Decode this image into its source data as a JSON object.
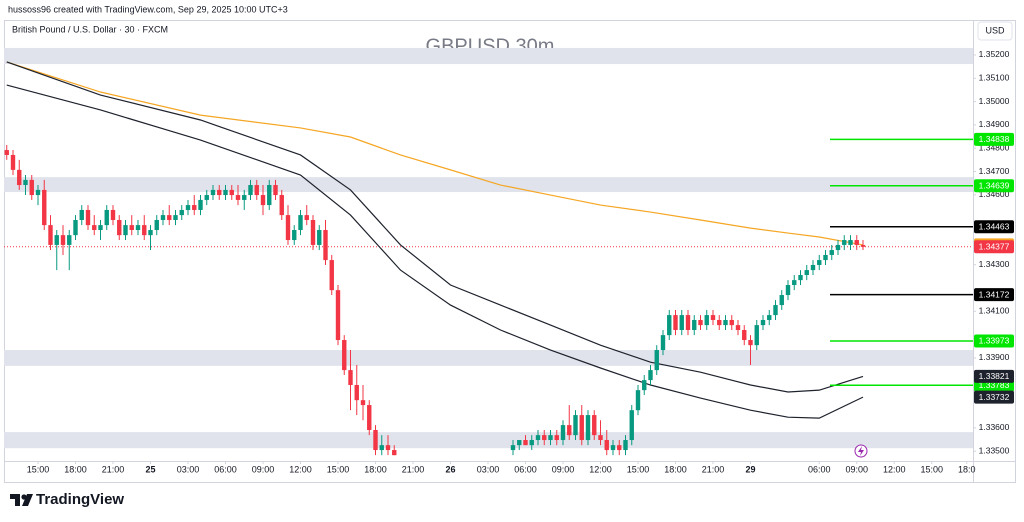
{
  "header": "hussoss96 created with TradingView.com, Sep 29, 2025 10:00 UTC+3",
  "brand": "TradingView",
  "chart_data": {
    "type": "candlestick",
    "subtitle": "British Pound / U.S. Dollar · 30 · FXCM",
    "title": "GBPUSD 30m",
    "currency": "USD",
    "ylim": [
      1.33458,
      1.3535
    ],
    "xlim": [
      -0.44,
      154.6
    ],
    "yticks": [
      {
        "value": 1.352,
        "label": "1.35200"
      },
      {
        "value": 1.351,
        "label": "1.35100"
      },
      {
        "value": 1.35,
        "label": "1.35000"
      },
      {
        "value": 1.349,
        "label": "1.34900"
      },
      {
        "value": 1.348,
        "label": "1.34800"
      },
      {
        "value": 1.347,
        "label": "1.34700"
      },
      {
        "value": 1.346,
        "label": "1.34600"
      },
      {
        "value": 1.343,
        "label": "1.34300"
      },
      {
        "value": 1.341,
        "label": "1.34100"
      },
      {
        "value": 1.339,
        "label": "1.33900"
      },
      {
        "value": 1.336,
        "label": "1.33600"
      },
      {
        "value": 1.335,
        "label": "1.33500"
      }
    ],
    "xticks": [
      {
        "value": 5,
        "label": "15:00"
      },
      {
        "value": 11,
        "label": "18:00"
      },
      {
        "value": 17,
        "label": "21:00"
      },
      {
        "value": 23,
        "label": "25"
      },
      {
        "value": 29,
        "label": "03:00"
      },
      {
        "value": 35,
        "label": "06:00"
      },
      {
        "value": 41,
        "label": "09:00"
      },
      {
        "value": 47,
        "label": "12:00"
      },
      {
        "value": 53,
        "label": "15:00"
      },
      {
        "value": 59,
        "label": "18:00"
      },
      {
        "value": 65,
        "label": "21:00"
      },
      {
        "value": 71,
        "label": "26"
      },
      {
        "value": 77,
        "label": "03:00"
      },
      {
        "value": 83,
        "label": "06:00"
      },
      {
        "value": 89,
        "label": "09:00"
      },
      {
        "value": 95,
        "label": "12:00"
      },
      {
        "value": 101,
        "label": "15:00"
      },
      {
        "value": 107,
        "label": "18:00"
      },
      {
        "value": 113,
        "label": "21:00"
      },
      {
        "value": 119,
        "label": "29"
      },
      {
        "value": 130,
        "label": "06:00"
      },
      {
        "value": 136,
        "label": "09:00"
      },
      {
        "value": 142,
        "label": "12:00"
      },
      {
        "value": 148,
        "label": "15:00"
      },
      {
        "value": 153.6,
        "label": "18:0"
      }
    ],
    "zone_color": "#e0e3eb",
    "zones": [
      [
        1.35161,
        1.3523
      ],
      [
        1.34612,
        1.34676
      ],
      [
        1.33866,
        1.33934
      ],
      [
        1.33513,
        1.33582
      ]
    ],
    "candles": {
      "up_color": "#089981",
      "down_color": "#f23645",
      "x": [
        0,
        1,
        2,
        3,
        4,
        5,
        6,
        7,
        8,
        9,
        10,
        11,
        12,
        13,
        14,
        15,
        16,
        17,
        18,
        19,
        20,
        21,
        22,
        23,
        24,
        25,
        26,
        27,
        28,
        29,
        30,
        31,
        32,
        33,
        34,
        35,
        36,
        37,
        38,
        39,
        40,
        41,
        42,
        43,
        44,
        45,
        46,
        47,
        48,
        49,
        50,
        51,
        52,
        53,
        54,
        55,
        56,
        57,
        58,
        59,
        60,
        61,
        62,
        81,
        82,
        83,
        84,
        85,
        86,
        87,
        88,
        89,
        90,
        91,
        92,
        93,
        94,
        95,
        96,
        97,
        98,
        99,
        100,
        101,
        102,
        103,
        104,
        105,
        106,
        107,
        108,
        109,
        110,
        111,
        112,
        113,
        114,
        115,
        116,
        117,
        118,
        119,
        120,
        121,
        122,
        123,
        124,
        125,
        126,
        127,
        128,
        129,
        130,
        131,
        132,
        133,
        134,
        135,
        136,
        137
      ],
      "open": [
        1.34792,
        1.34771,
        1.34707,
        1.34642,
        1.34664,
        1.34599,
        1.34621,
        1.3447,
        1.34385,
        1.34427,
        1.34385,
        1.34427,
        1.34492,
        1.34535,
        1.3447,
        1.34449,
        1.3447,
        1.34535,
        1.34492,
        1.34427,
        1.3447,
        1.34449,
        1.3447,
        1.34427,
        1.34449,
        1.34492,
        1.34513,
        1.34492,
        1.34513,
        1.34535,
        1.34556,
        1.34535,
        1.34578,
        1.34599,
        1.34621,
        1.34599,
        1.34621,
        1.34599,
        1.34578,
        1.34599,
        1.34642,
        1.34599,
        1.34556,
        1.34642,
        1.34599,
        1.34513,
        1.34406,
        1.34449,
        1.34513,
        1.34492,
        1.34385,
        1.34449,
        1.3432,
        1.34191,
        1.33977,
        1.33848,
        1.33784,
        1.33719,
        1.33698,
        1.33591,
        1.33505,
        1.33526,
        1.33505,
        1.33505,
        1.33526,
        1.33548,
        1.33526,
        1.33548,
        1.33569,
        1.33548,
        1.33569,
        1.33548,
        1.33612,
        1.33569,
        1.33655,
        1.33548,
        1.33655,
        1.33569,
        1.33548,
        1.33505,
        1.33526,
        1.33505,
        1.33548,
        1.33676,
        1.33762,
        1.33805,
        1.33848,
        1.33934,
        1.33998,
        1.34084,
        1.3402,
        1.34084,
        1.3402,
        1.34063,
        1.34041,
        1.34084,
        1.34063,
        1.34041,
        1.34063,
        1.34041,
        1.3402,
        1.33977,
        1.33955,
        1.34041,
        1.34063,
        1.34084,
        1.34127,
        1.3417,
        1.34213,
        1.34234,
        1.34256,
        1.34277,
        1.34299,
        1.3432,
        1.34342,
        1.34363,
        1.34385,
        1.34385,
        1.34406,
        1.34385
      ],
      "high": [
        1.34814,
        1.34792,
        1.3475,
        1.34685,
        1.34685,
        1.34642,
        1.34664,
        1.34513,
        1.34449,
        1.3447,
        1.34449,
        1.34513,
        1.34556,
        1.34556,
        1.34513,
        1.34492,
        1.34556,
        1.34556,
        1.34513,
        1.34492,
        1.34513,
        1.34492,
        1.34513,
        1.3447,
        1.34513,
        1.34535,
        1.34556,
        1.34535,
        1.34556,
        1.34578,
        1.34599,
        1.34599,
        1.34621,
        1.34642,
        1.34642,
        1.34642,
        1.34642,
        1.34642,
        1.34621,
        1.34664,
        1.34664,
        1.34642,
        1.34664,
        1.34664,
        1.34621,
        1.34556,
        1.3447,
        1.34535,
        1.34556,
        1.34513,
        1.3447,
        1.34492,
        1.34342,
        1.34213,
        1.33998,
        1.33934,
        1.3387,
        1.33784,
        1.33719,
        1.33612,
        1.33569,
        1.33569,
        1.33526,
        1.33548,
        1.33548,
        1.33569,
        1.33569,
        1.33591,
        1.33591,
        1.33591,
        1.33591,
        1.33633,
        1.33698,
        1.33676,
        1.33698,
        1.33676,
        1.33676,
        1.33633,
        1.33591,
        1.33548,
        1.33548,
        1.33569,
        1.33698,
        1.33784,
        1.33827,
        1.3387,
        1.33955,
        1.3402,
        1.34106,
        1.34106,
        1.34106,
        1.34106,
        1.34084,
        1.34084,
        1.34106,
        1.34106,
        1.34084,
        1.34084,
        1.34084,
        1.34063,
        1.34041,
        1.33998,
        1.34063,
        1.34084,
        1.34106,
        1.34148,
        1.34191,
        1.34234,
        1.34256,
        1.34277,
        1.34299,
        1.3432,
        1.34342,
        1.34363,
        1.34385,
        1.34406,
        1.34427,
        1.34427,
        1.34427,
        1.34406
      ],
      "low": [
        1.3475,
        1.34685,
        1.34621,
        1.34599,
        1.34578,
        1.34556,
        1.34449,
        1.34363,
        1.34277,
        1.34342,
        1.34277,
        1.34406,
        1.3447,
        1.34449,
        1.34427,
        1.34406,
        1.34449,
        1.3447,
        1.34406,
        1.34406,
        1.34427,
        1.34427,
        1.34406,
        1.34363,
        1.34427,
        1.3447,
        1.3447,
        1.3447,
        1.34492,
        1.34513,
        1.34513,
        1.34513,
        1.34556,
        1.34578,
        1.34578,
        1.34578,
        1.34578,
        1.34556,
        1.34535,
        1.34578,
        1.34578,
        1.34513,
        1.34535,
        1.34578,
        1.34492,
        1.34385,
        1.34385,
        1.34427,
        1.3447,
        1.34363,
        1.34363,
        1.34299,
        1.3417,
        1.33955,
        1.33827,
        1.33676,
        1.33655,
        1.33633,
        1.33569,
        1.33483,
        1.33483,
        1.33483,
        1.33483,
        1.33483,
        1.33505,
        1.33526,
        1.33505,
        1.33526,
        1.33526,
        1.33526,
        1.33526,
        1.33526,
        1.33548,
        1.33548,
        1.33526,
        1.33526,
        1.33548,
        1.33526,
        1.33483,
        1.33483,
        1.33483,
        1.33483,
        1.33526,
        1.33655,
        1.33741,
        1.33784,
        1.33827,
        1.33912,
        1.33977,
        1.33998,
        1.33998,
        1.33998,
        1.33998,
        1.3402,
        1.3402,
        1.34041,
        1.3402,
        1.3402,
        1.3402,
        1.33998,
        1.33955,
        1.3387,
        1.33934,
        1.3402,
        1.34041,
        1.34063,
        1.34106,
        1.34148,
        1.34191,
        1.34213,
        1.34234,
        1.34256,
        1.34277,
        1.34299,
        1.3432,
        1.34342,
        1.34363,
        1.34363,
        1.34363,
        1.34363
      ],
      "close": [
        1.34771,
        1.34707,
        1.34642,
        1.34664,
        1.34599,
        1.34621,
        1.3447,
        1.34385,
        1.34427,
        1.34385,
        1.34427,
        1.34492,
        1.34535,
        1.3447,
        1.34449,
        1.3447,
        1.34535,
        1.34492,
        1.34427,
        1.3447,
        1.34449,
        1.3447,
        1.34427,
        1.34449,
        1.34492,
        1.34513,
        1.34492,
        1.34513,
        1.34535,
        1.34556,
        1.34535,
        1.34578,
        1.34599,
        1.34621,
        1.34599,
        1.34621,
        1.34599,
        1.34578,
        1.34599,
        1.34642,
        1.34599,
        1.34556,
        1.34642,
        1.34599,
        1.34513,
        1.34406,
        1.34449,
        1.34513,
        1.34492,
        1.34385,
        1.34449,
        1.3432,
        1.34191,
        1.33977,
        1.33848,
        1.33784,
        1.33719,
        1.33698,
        1.33591,
        1.33505,
        1.33526,
        1.33505,
        1.33483,
        1.33526,
        1.33548,
        1.33526,
        1.33548,
        1.33569,
        1.33548,
        1.33569,
        1.33548,
        1.33612,
        1.33569,
        1.33655,
        1.33548,
        1.33655,
        1.33569,
        1.33548,
        1.33505,
        1.33526,
        1.33505,
        1.33548,
        1.33676,
        1.33762,
        1.33805,
        1.33848,
        1.33934,
        1.33998,
        1.34084,
        1.3402,
        1.34084,
        1.3402,
        1.34063,
        1.34041,
        1.34084,
        1.34063,
        1.34041,
        1.34063,
        1.34041,
        1.3402,
        1.33977,
        1.33955,
        1.34041,
        1.34063,
        1.34084,
        1.34127,
        1.3417,
        1.34213,
        1.34234,
        1.34256,
        1.34277,
        1.34299,
        1.3432,
        1.34342,
        1.34363,
        1.34385,
        1.34406,
        1.34406,
        1.34385,
        1.34377
      ]
    },
    "lines": [
      {
        "color": "#f5a623",
        "x": [
          0,
          15,
          31,
          47,
          55,
          63,
          71,
          79,
          87,
          95,
          103,
          111,
          119,
          125,
          130,
          137
        ],
        "values": [
          1.3517,
          1.35041,
          1.34942,
          1.34887,
          1.34848,
          1.34771,
          1.34707,
          1.34642,
          1.34599,
          1.34556,
          1.34526,
          1.34492,
          1.34457,
          1.34436,
          1.34419,
          1.34385
        ]
      },
      {
        "color": "#1e222d",
        "x": [
          0,
          15,
          31,
          47,
          55,
          63,
          71,
          79,
          87,
          95,
          103,
          111,
          119,
          125,
          130,
          137
        ],
        "values": [
          1.3517,
          1.35028,
          1.34921,
          1.34771,
          1.34621,
          1.34385,
          1.34213,
          1.34127,
          1.34041,
          1.33955,
          1.33882,
          1.33839,
          1.33784,
          1.33754,
          1.33762,
          1.33821
        ]
      },
      {
        "color": "#1e222d",
        "x": [
          0,
          15,
          31,
          47,
          55,
          63,
          71,
          79,
          87,
          95,
          103,
          111,
          119,
          125,
          130,
          137
        ],
        "values": [
          1.35071,
          1.34964,
          1.34835,
          1.34685,
          1.34513,
          1.34277,
          1.34127,
          1.3402,
          1.33934,
          1.33857,
          1.33784,
          1.33728,
          1.33676,
          1.33646,
          1.33642,
          1.33732
        ]
      }
    ],
    "levels": [
      {
        "price": 1.34838,
        "color": "#00e600"
      },
      {
        "price": 1.34639,
        "color": "#00e600"
      },
      {
        "price": 1.34463,
        "color": "#000000"
      },
      {
        "price": 1.34172,
        "color": "#000000"
      },
      {
        "price": 1.33973,
        "color": "#00e600"
      },
      {
        "price": 1.33783,
        "color": "#00e600"
      }
    ]
  }
}
